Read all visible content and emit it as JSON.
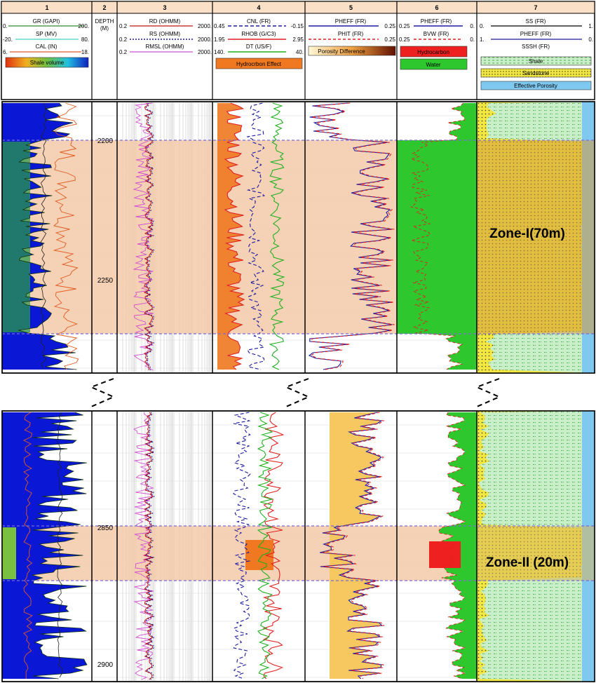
{
  "tracks": [
    {
      "number": "1",
      "curves": [
        {
          "name": "GR (GAPI)",
          "min": "0.",
          "max": "200.",
          "color": "#2e8b2e",
          "dash": ""
        },
        {
          "name": "SP (MV)",
          "min": "-20.",
          "max": "80.",
          "color": "#40d0c0",
          "dash": ""
        },
        {
          "name": "CAL (IN)",
          "min": "6.",
          "max": "18.",
          "color": "#e05a20",
          "dash": ""
        }
      ],
      "fill": "Shale volume"
    },
    {
      "number": "2",
      "curves": [],
      "title_lines": [
        "DEPTH",
        "(M)"
      ]
    },
    {
      "number": "3",
      "curves": [
        {
          "name": "RD (OHMM)",
          "min": "0.2",
          "max": "2000.",
          "color": "#c01010",
          "dash": ""
        },
        {
          "name": "RS (OHMM)",
          "min": "0.2",
          "max": "2000.",
          "color": "#1a1aa0",
          "dash": "2,2"
        },
        {
          "name": "RMSL (OHMM)",
          "min": "0.2",
          "max": "2000.",
          "color": "#d050d0",
          "dash": ""
        }
      ]
    },
    {
      "number": "4",
      "curves": [
        {
          "name": "CNL (FR)",
          "min": "0.45",
          "max": "-0.15",
          "color": "#1a1aa0",
          "dash": "5,3"
        },
        {
          "name": "RHOB (G/C3)",
          "min": "1.95",
          "max": "2.95",
          "color": "#e02020",
          "dash": ""
        },
        {
          "name": "DT (US/F)",
          "min": "140.",
          "max": "40.",
          "color": "#20b020",
          "dash": ""
        }
      ],
      "fill": "Hydrocrbon Effect"
    },
    {
      "number": "5",
      "curves": [
        {
          "name": "PHEFF (FR)",
          "min": "0.25",
          "max": "0.25",
          "color": "#1a1aa0",
          "dash": ""
        },
        {
          "name": "PHIT (FR)",
          "min": "0.25",
          "max": "0.25",
          "color": "#e02020",
          "dash": "4,3"
        }
      ],
      "fill": "Porosity Difference"
    },
    {
      "number": "6",
      "curves": [
        {
          "name": "PHEFF (FR)",
          "min": "0.25",
          "max": "0.",
          "color": "#1a1aa0",
          "dash": ""
        },
        {
          "name": "BVW (FR)",
          "min": "0.25",
          "max": "0.",
          "color": "#e02020",
          "dash": "4,3"
        }
      ],
      "fills": [
        "Hydrocarbon",
        "Water"
      ]
    },
    {
      "number": "7",
      "curves": [
        {
          "name": "SS (FR)",
          "min": "0.",
          "max": "1.",
          "color": "#000",
          "dash": ""
        },
        {
          "name": "PHEFF (FR)",
          "min": "1.",
          "max": "0.",
          "color": "#1a1aa0",
          "dash": ""
        },
        {
          "name": "SSSH (FR)",
          "min": "",
          "max": "",
          "color": "#000",
          "dash": ""
        }
      ],
      "fills": [
        "Shale",
        "Sandstone",
        "Effective Porosity"
      ]
    }
  ],
  "depth_labels": {
    "upper": [
      "2200",
      "2250"
    ],
    "lower": [
      "2850",
      "2900"
    ]
  },
  "zones": {
    "upper": "Zone-I(70m)",
    "lower": "Zone-II (20m)"
  },
  "colors": {
    "zone_band": "#f3c9a8",
    "water": "#2ec82e",
    "hydrocarbon": "#ee2020",
    "shale_fill": "#c6ecc6",
    "sand_fill": "#f2e640",
    "porosity_fill": "#7fc8f0",
    "hc_effect": "#f07820",
    "gr_blue": "#0a18d6",
    "porosity_diff": "#f7c860"
  }
}
